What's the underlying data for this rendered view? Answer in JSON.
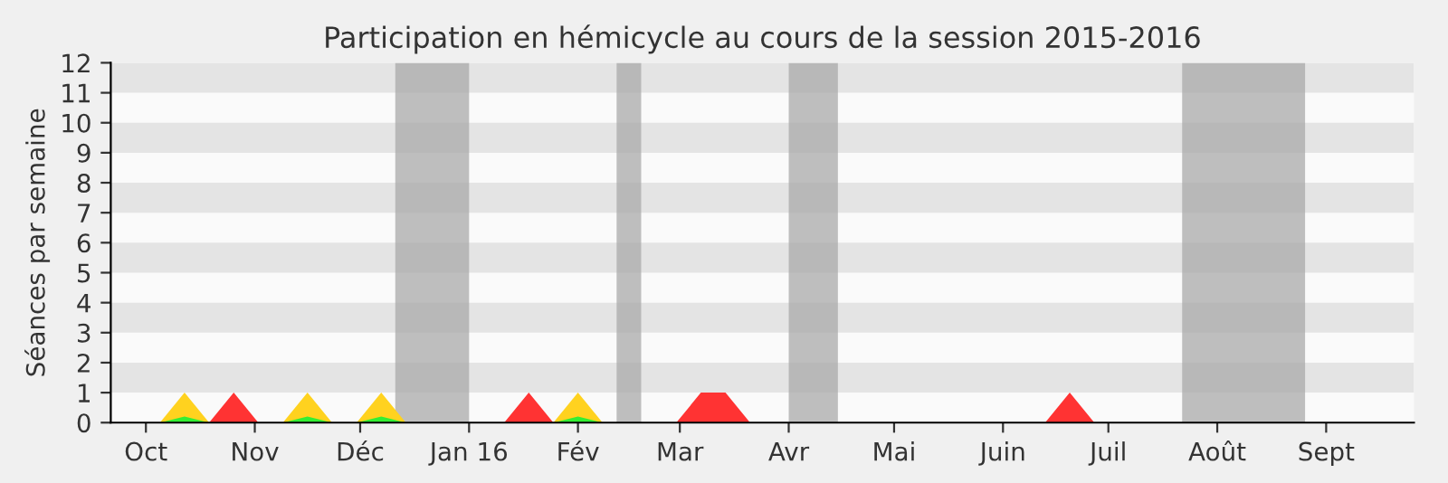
{
  "chart_data": {
    "type": "area",
    "title": "Participation en hémicycle au cours de la session 2015-2016",
    "ylabel": "Séances par semaine",
    "x": [
      "2015-09-21",
      "2015-09-28",
      "2015-10-05",
      "2015-10-12",
      "2015-10-19",
      "2015-10-26",
      "2015-11-02",
      "2015-11-09",
      "2015-11-16",
      "2015-11-23",
      "2015-11-30",
      "2015-12-07",
      "2015-12-14",
      "2015-12-21",
      "2015-12-28",
      "2016-01-04",
      "2016-01-11",
      "2016-01-18",
      "2016-01-25",
      "2016-02-01",
      "2016-02-08",
      "2016-02-15",
      "2016-02-22",
      "2016-02-29",
      "2016-03-07",
      "2016-03-14",
      "2016-03-21",
      "2016-03-28",
      "2016-04-04",
      "2016-04-11",
      "2016-04-18",
      "2016-04-25",
      "2016-05-02",
      "2016-05-09",
      "2016-05-16",
      "2016-05-23",
      "2016-05-30",
      "2016-06-06",
      "2016-06-13",
      "2016-06-20",
      "2016-06-27",
      "2016-07-04",
      "2016-07-11",
      "2016-07-18",
      "2016-07-25",
      "2016-08-01",
      "2016-08-08",
      "2016-08-15",
      "2016-08-22",
      "2016-08-29",
      "2016-09-05",
      "2016-09-12",
      "2016-09-19",
      "2016-09-26"
    ],
    "series": [
      {
        "color": "#ff3333",
        "values": [
          0,
          0,
          0,
          0,
          0,
          1,
          0,
          0,
          0,
          0,
          0,
          0,
          0,
          0,
          0,
          0,
          0,
          1,
          0,
          0,
          0,
          0,
          0,
          0,
          1,
          1,
          0,
          0,
          0,
          0,
          0,
          0,
          0,
          0,
          0,
          0,
          0,
          0,
          0,
          1,
          0,
          0,
          0,
          0,
          0,
          0,
          0,
          0,
          0,
          0,
          0,
          0,
          0,
          0
        ]
      },
      {
        "color": "#ffd21f",
        "values": [
          null,
          null,
          0,
          1,
          0,
          null,
          null,
          0,
          1,
          0,
          0,
          1,
          0,
          null,
          null,
          null,
          null,
          null,
          0,
          1,
          0,
          null,
          null,
          null,
          null,
          null,
          null,
          null,
          null,
          null,
          null,
          null,
          null,
          null,
          null,
          null,
          null,
          null,
          null,
          null,
          null,
          null,
          null,
          null,
          null,
          null,
          null,
          null,
          null,
          null,
          null,
          null,
          null,
          null
        ]
      },
      {
        "color": "#33ee33",
        "values": [
          null,
          null,
          0,
          0.2,
          0,
          null,
          null,
          0,
          0.2,
          0,
          0,
          0.2,
          0,
          null,
          null,
          null,
          null,
          null,
          0,
          0.2,
          0,
          null,
          null,
          null,
          null,
          null,
          null,
          null,
          null,
          null,
          null,
          null,
          null,
          null,
          null,
          null,
          null,
          null,
          null,
          null,
          null,
          null,
          null,
          null,
          null,
          null,
          null,
          null,
          null,
          null,
          null,
          null,
          null,
          null
        ]
      }
    ],
    "xlim": [
      "2015-09-21",
      "2016-09-26"
    ],
    "xticks": [
      {
        "value": "2015-10-01",
        "label": "Oct"
      },
      {
        "value": "2015-11-01",
        "label": "Nov"
      },
      {
        "value": "2015-12-01",
        "label": "Déc"
      },
      {
        "value": "2016-01-01",
        "label": "Jan 16"
      },
      {
        "value": "2016-02-01",
        "label": "Fév"
      },
      {
        "value": "2016-03-01",
        "label": "Mar"
      },
      {
        "value": "2016-04-01",
        "label": "Avr"
      },
      {
        "value": "2016-05-01",
        "label": "Mai"
      },
      {
        "value": "2016-06-01",
        "label": "Juin"
      },
      {
        "value": "2016-07-01",
        "label": "Juil"
      },
      {
        "value": "2016-08-01",
        "label": "Août"
      },
      {
        "value": "2016-09-01",
        "label": "Sept"
      }
    ],
    "ylim": [
      0,
      12
    ],
    "yticks": [
      0,
      1,
      2,
      3,
      4,
      5,
      6,
      7,
      8,
      9,
      10,
      11,
      12
    ],
    "bands": [
      {
        "axis": "x",
        "from": "2015-12-11",
        "to": "2016-01-01",
        "color": "#aaaaaa"
      },
      {
        "axis": "x",
        "from": "2016-02-12",
        "to": "2016-02-19",
        "color": "#aaaaaa"
      },
      {
        "axis": "x",
        "from": "2016-04-01",
        "to": "2016-04-15",
        "color": "#aaaaaa"
      },
      {
        "axis": "x",
        "from": "2016-07-22",
        "to": "2016-08-26",
        "color": "#aaaaaa"
      },
      {
        "axis": "y",
        "from": 1,
        "to": 2,
        "color": "#e4e4e4"
      },
      {
        "axis": "y",
        "from": 3,
        "to": 4,
        "color": "#e4e4e4"
      },
      {
        "axis": "y",
        "from": 5,
        "to": 6,
        "color": "#e4e4e4"
      },
      {
        "axis": "y",
        "from": 7,
        "to": 8,
        "color": "#e4e4e4"
      },
      {
        "axis": "y",
        "from": 9,
        "to": 10,
        "color": "#e4e4e4"
      },
      {
        "axis": "y",
        "from": 11,
        "to": 12,
        "color": "#e4e4e4"
      }
    ],
    "legend": false
  }
}
